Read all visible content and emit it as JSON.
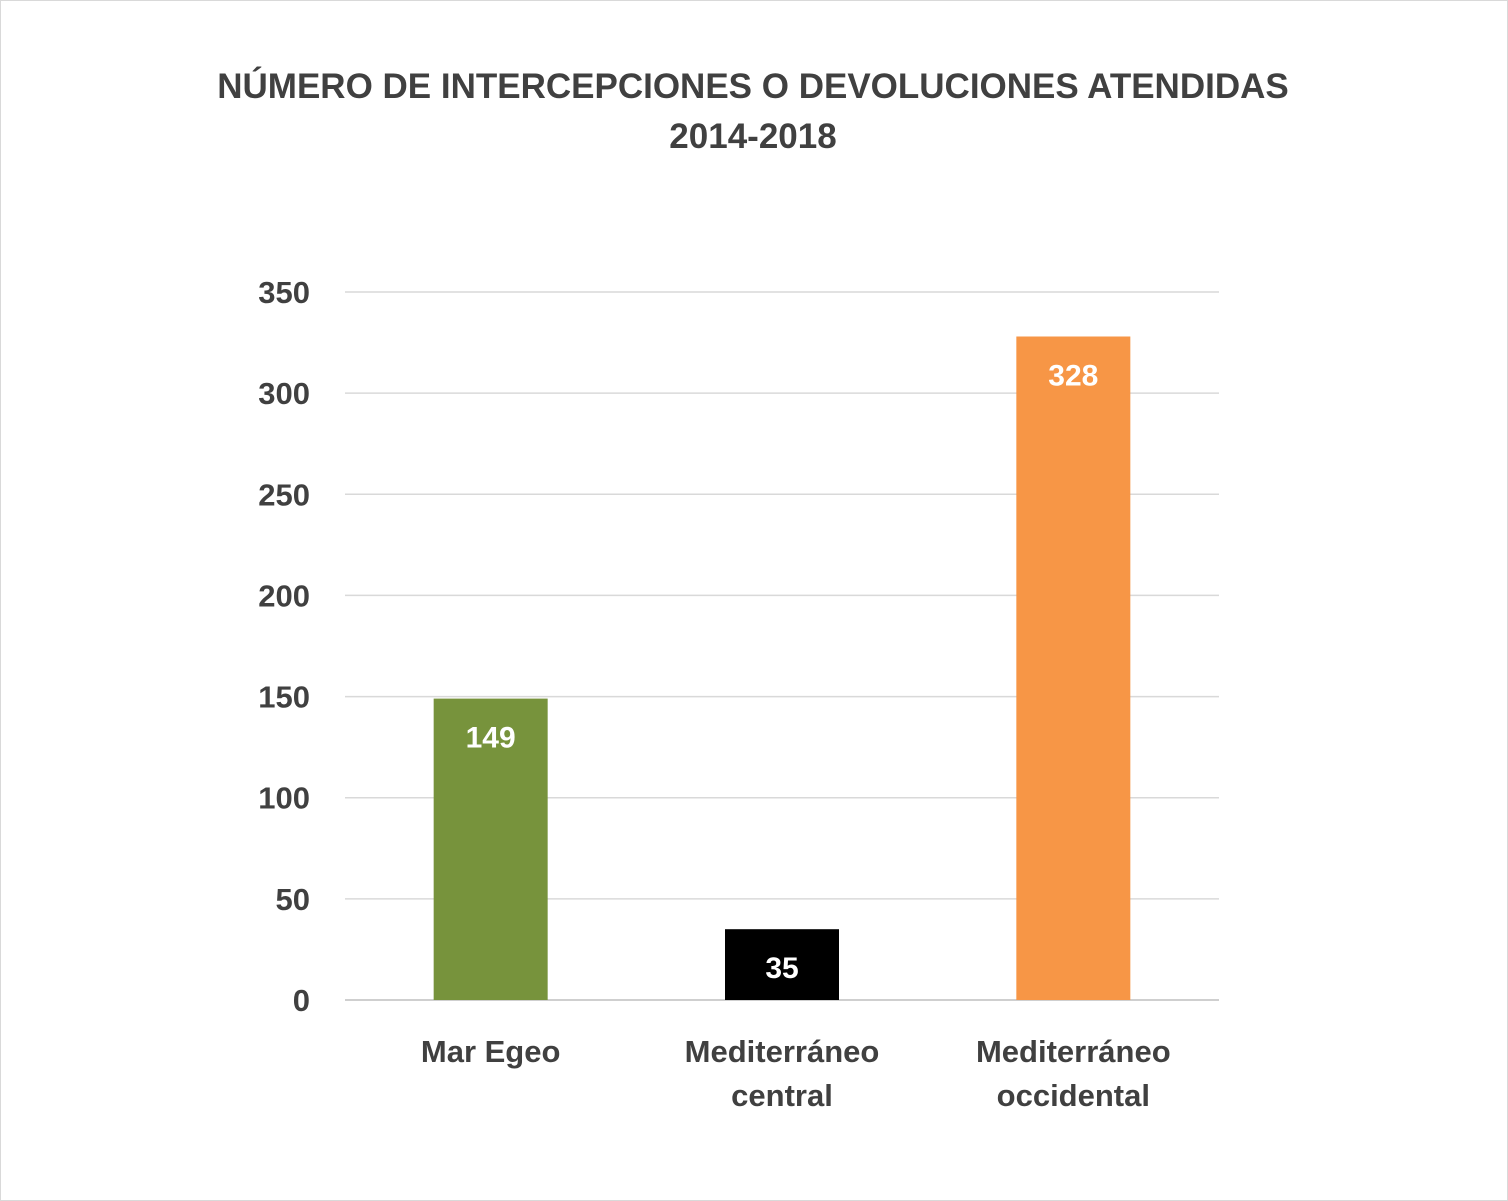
{
  "chart_data": {
    "type": "bar",
    "title_lines": [
      "NÚMERO DE INTERCEPCIONES O DEVOLUCIONES ATENDIDAS",
      "2014-2018"
    ],
    "categories": [
      [
        "Mar Egeo"
      ],
      [
        "Mediterráneo",
        "central"
      ],
      [
        "Mediterráneo",
        "occidental"
      ]
    ],
    "values": [
      149,
      35,
      328
    ],
    "data_labels": [
      "149",
      "35",
      "328"
    ],
    "bar_colors": [
      "#77933c",
      "#000000",
      "#f79646"
    ],
    "ylim": [
      0,
      350
    ],
    "yticks": [
      0,
      50,
      100,
      150,
      200,
      250,
      300,
      350
    ],
    "ytick_labels": [
      "0",
      "50",
      "100",
      "150",
      "200",
      "250",
      "300",
      "350"
    ],
    "grid": true,
    "legend": false,
    "xlabel": "",
    "ylabel": ""
  }
}
